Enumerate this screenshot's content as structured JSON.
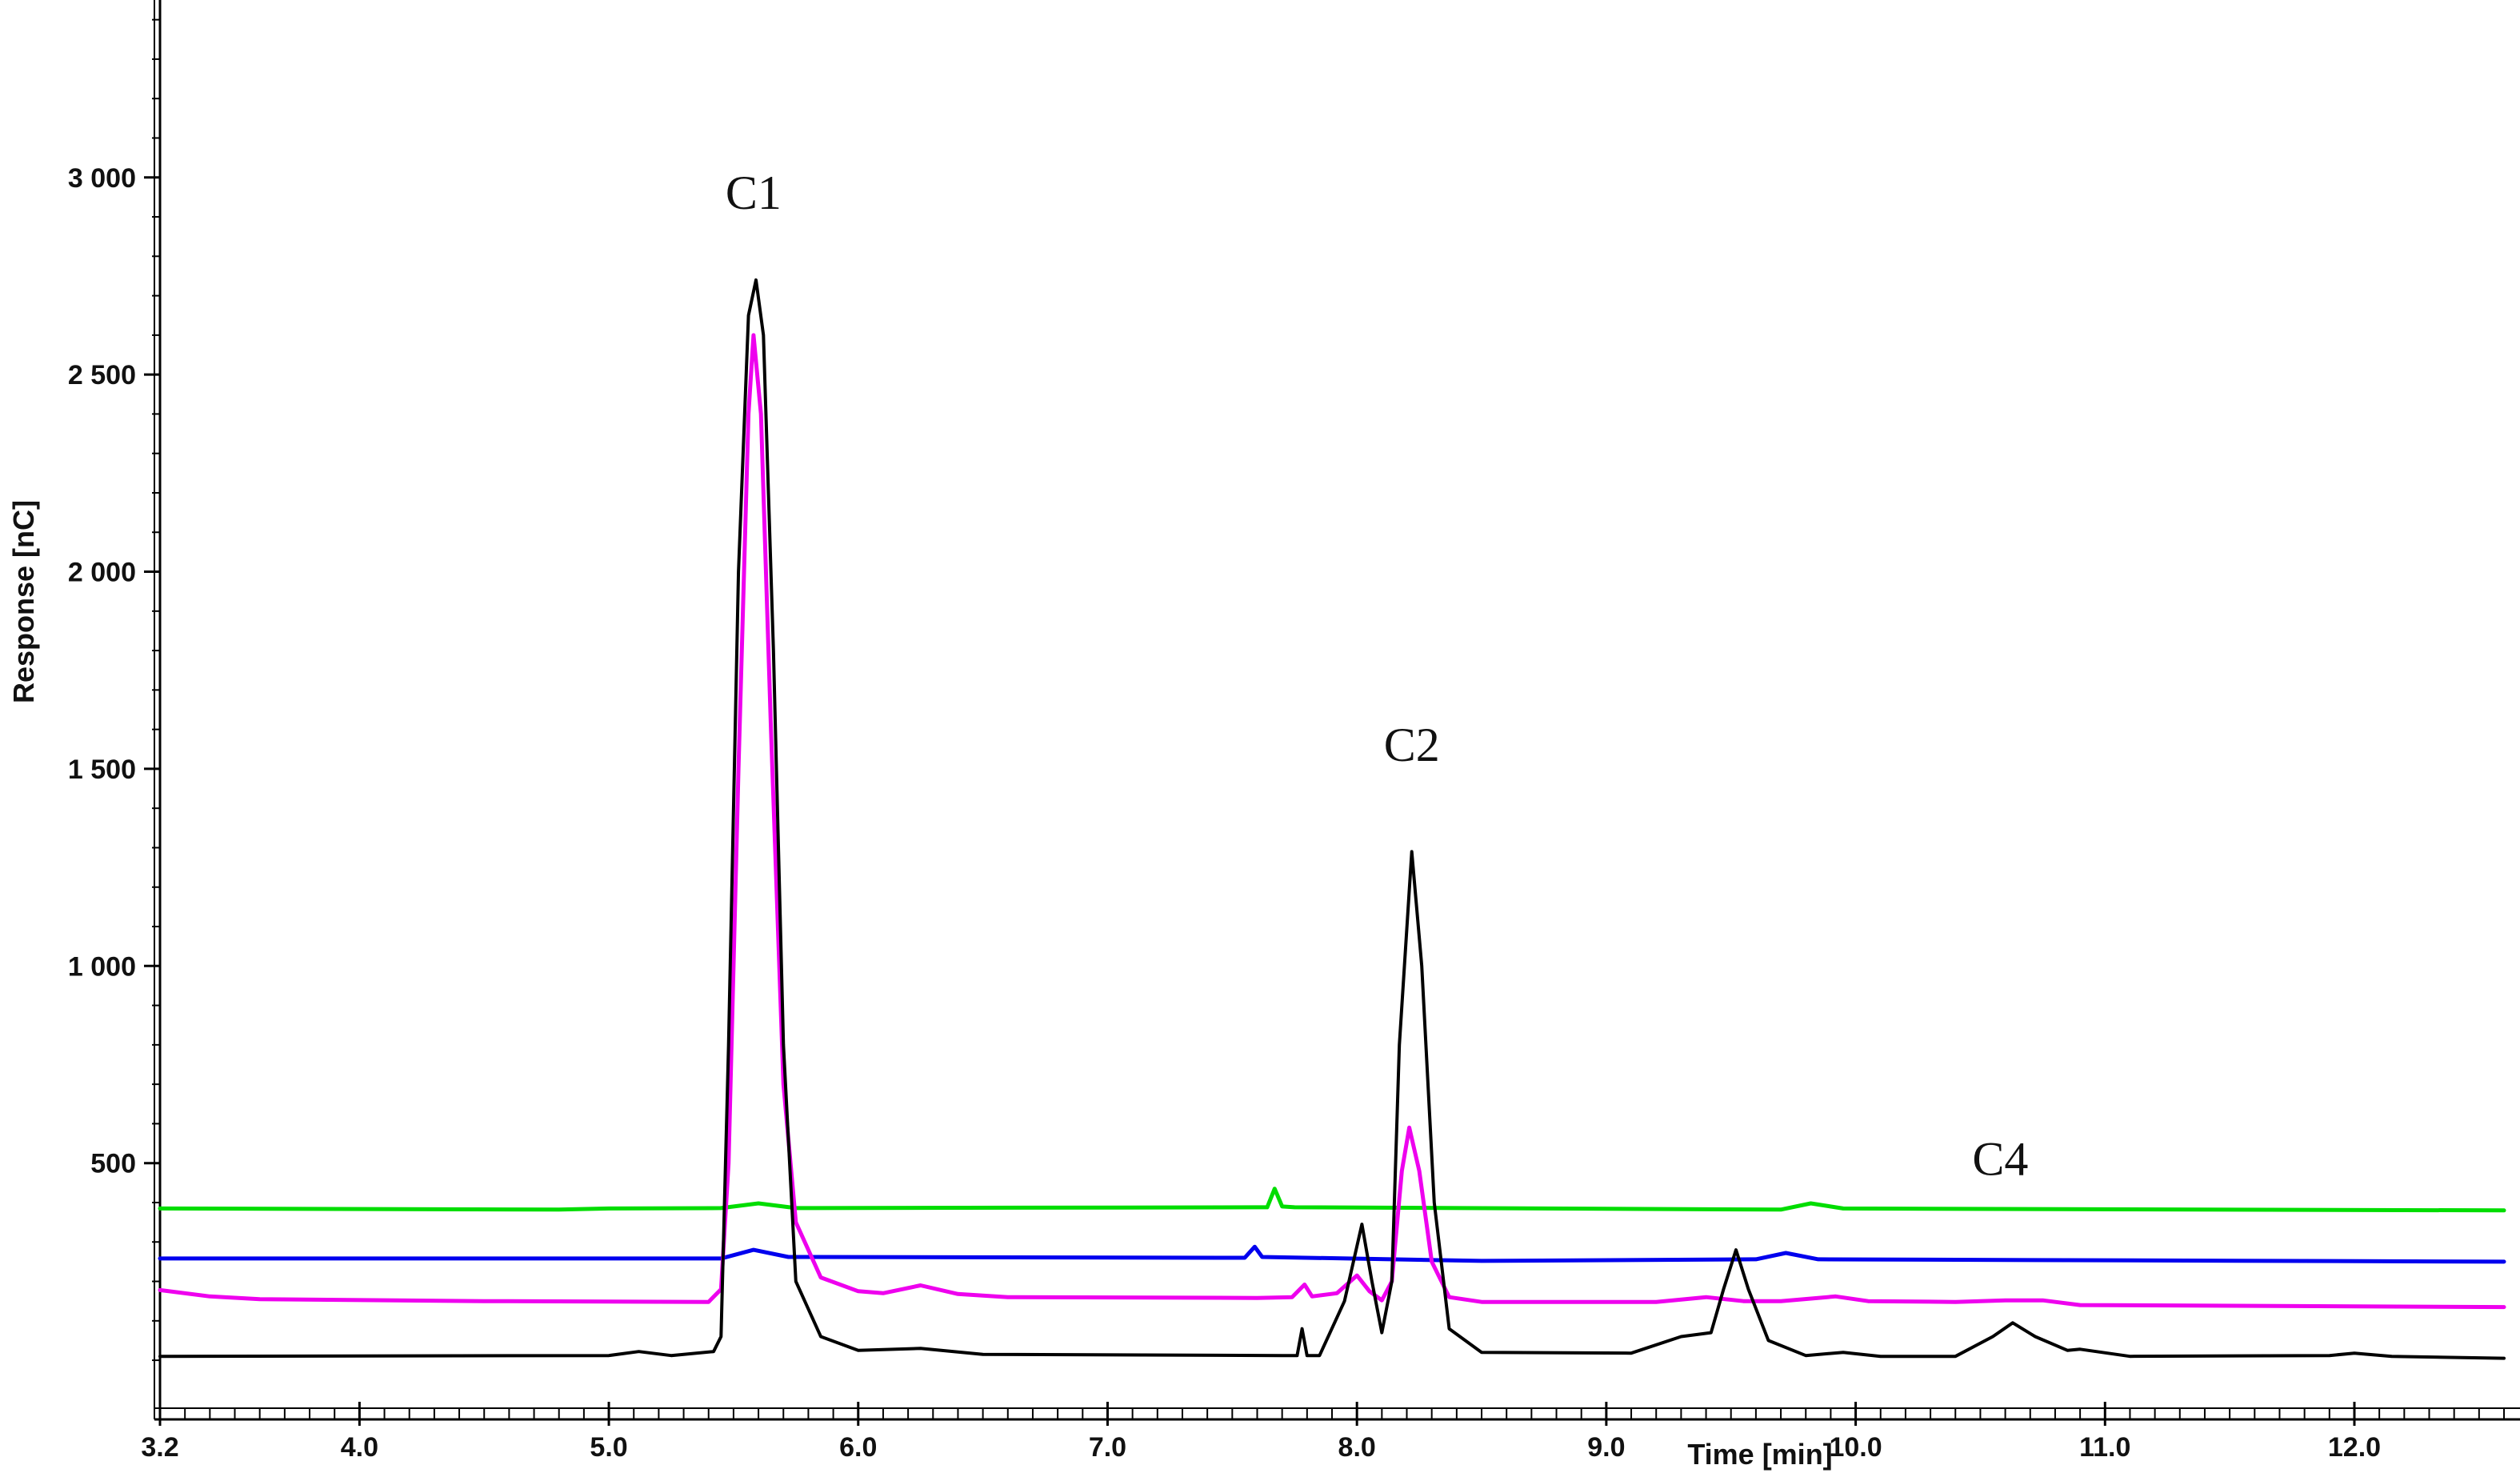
{
  "chart_data": {
    "type": "line",
    "xlabel": "Time [min]",
    "ylabel": "Response [nC]",
    "xlim": [
      3.2,
      12.6
    ],
    "ylim": [
      -150,
      3450
    ],
    "x_ticks": [
      {
        "value": 3.2,
        "label": "3.2"
      },
      {
        "value": 4.0,
        "label": "4.0"
      },
      {
        "value": 5.0,
        "label": "5.0"
      },
      {
        "value": 6.0,
        "label": "6.0"
      },
      {
        "value": 7.0,
        "label": "7.0"
      },
      {
        "value": 8.0,
        "label": "8.0"
      },
      {
        "value": 9.0,
        "label": "9.0"
      },
      {
        "value": 10.0,
        "label": "10.0"
      },
      {
        "value": 11.0,
        "label": "11.0"
      },
      {
        "value": 12.0,
        "label": "12.0"
      }
    ],
    "y_ticks": [
      {
        "value": 500,
        "label": "500"
      },
      {
        "value": 1000,
        "label": "1 000"
      },
      {
        "value": 1500,
        "label": "1 500"
      },
      {
        "value": 2000,
        "label": "2 000"
      },
      {
        "value": 2500,
        "label": "2 500"
      },
      {
        "value": 3000,
        "label": "3 000"
      }
    ],
    "grid": false,
    "series": [
      {
        "color": "#00dd00",
        "points": [
          [
            3.2,
            385
          ],
          [
            4.8,
            382
          ],
          [
            5.0,
            385
          ],
          [
            5.45,
            386
          ],
          [
            5.6,
            398
          ],
          [
            5.75,
            386
          ],
          [
            7.6,
            388
          ],
          [
            7.64,
            388
          ],
          [
            7.67,
            435
          ],
          [
            7.7,
            390
          ],
          [
            7.75,
            388
          ],
          [
            9.7,
            382
          ],
          [
            9.82,
            398
          ],
          [
            9.95,
            385
          ],
          [
            12.6,
            380
          ]
        ]
      },
      {
        "color": "#0000ee",
        "points": [
          [
            3.2,
            258
          ],
          [
            5.0,
            258
          ],
          [
            5.45,
            258
          ],
          [
            5.58,
            280
          ],
          [
            5.72,
            262
          ],
          [
            7.55,
            260
          ],
          [
            7.59,
            288
          ],
          [
            7.62,
            262
          ],
          [
            8.5,
            252
          ],
          [
            9.6,
            256
          ],
          [
            9.72,
            272
          ],
          [
            9.85,
            256
          ],
          [
            12.6,
            250
          ]
        ]
      },
      {
        "color": "#ee00ee",
        "points": [
          [
            3.2,
            178
          ],
          [
            3.4,
            162
          ],
          [
            3.6,
            155
          ],
          [
            4.5,
            150
          ],
          [
            5.4,
            148
          ],
          [
            5.45,
            180
          ],
          [
            5.48,
            500
          ],
          [
            5.52,
            1500
          ],
          [
            5.56,
            2400
          ],
          [
            5.58,
            2600
          ],
          [
            5.61,
            2400
          ],
          [
            5.65,
            1600
          ],
          [
            5.7,
            700
          ],
          [
            5.75,
            350
          ],
          [
            5.85,
            210
          ],
          [
            6.0,
            175
          ],
          [
            6.1,
            170
          ],
          [
            6.25,
            190
          ],
          [
            6.4,
            168
          ],
          [
            6.6,
            160
          ],
          [
            7.6,
            158
          ],
          [
            7.74,
            160
          ],
          [
            7.79,
            192
          ],
          [
            7.82,
            162
          ],
          [
            7.92,
            170
          ],
          [
            8.0,
            215
          ],
          [
            8.05,
            175
          ],
          [
            8.1,
            152
          ],
          [
            8.14,
            200
          ],
          [
            8.18,
            480
          ],
          [
            8.21,
            590
          ],
          [
            8.25,
            480
          ],
          [
            8.3,
            250
          ],
          [
            8.37,
            160
          ],
          [
            8.5,
            148
          ],
          [
            9.2,
            148
          ],
          [
            9.4,
            160
          ],
          [
            9.55,
            150
          ],
          [
            9.7,
            150
          ],
          [
            9.92,
            162
          ],
          [
            10.05,
            150
          ],
          [
            10.4,
            148
          ],
          [
            10.6,
            152
          ],
          [
            10.75,
            152
          ],
          [
            10.9,
            140
          ],
          [
            12.6,
            135
          ]
        ]
      },
      {
        "color": "#000000",
        "points": [
          [
            3.2,
            10
          ],
          [
            5.0,
            12
          ],
          [
            5.12,
            22
          ],
          [
            5.25,
            12
          ],
          [
            5.42,
            22
          ],
          [
            5.45,
            60
          ],
          [
            5.48,
            800
          ],
          [
            5.52,
            2000
          ],
          [
            5.56,
            2650
          ],
          [
            5.59,
            2740
          ],
          [
            5.62,
            2600
          ],
          [
            5.66,
            1800
          ],
          [
            5.7,
            800
          ],
          [
            5.75,
            200
          ],
          [
            5.85,
            60
          ],
          [
            6.0,
            25
          ],
          [
            6.25,
            30
          ],
          [
            6.5,
            15
          ],
          [
            7.7,
            12
          ],
          [
            7.76,
            12
          ],
          [
            7.78,
            80
          ],
          [
            7.8,
            12
          ],
          [
            7.85,
            12
          ],
          [
            7.95,
            150
          ],
          [
            8.02,
            345
          ],
          [
            8.06,
            200
          ],
          [
            8.1,
            70
          ],
          [
            8.14,
            200
          ],
          [
            8.17,
            800
          ],
          [
            8.22,
            1290
          ],
          [
            8.26,
            1000
          ],
          [
            8.31,
            400
          ],
          [
            8.37,
            80
          ],
          [
            8.5,
            20
          ],
          [
            9.1,
            18
          ],
          [
            9.3,
            60
          ],
          [
            9.42,
            70
          ],
          [
            9.47,
            180
          ],
          [
            9.52,
            280
          ],
          [
            9.57,
            180
          ],
          [
            9.65,
            50
          ],
          [
            9.8,
            12
          ],
          [
            9.95,
            20
          ],
          [
            10.1,
            10
          ],
          [
            10.4,
            10
          ],
          [
            10.55,
            60
          ],
          [
            10.63,
            95
          ],
          [
            10.72,
            60
          ],
          [
            10.85,
            25
          ],
          [
            10.9,
            28
          ],
          [
            11.1,
            10
          ],
          [
            11.9,
            12
          ],
          [
            12.0,
            18
          ],
          [
            12.15,
            10
          ],
          [
            12.6,
            5
          ]
        ]
      }
    ],
    "annotations": [
      {
        "text": "C1",
        "x": 5.58,
        "y": 2920
      },
      {
        "text": "C2",
        "x": 8.22,
        "y": 1520
      },
      {
        "text": "C4",
        "x": 10.58,
        "y": 470
      }
    ]
  }
}
